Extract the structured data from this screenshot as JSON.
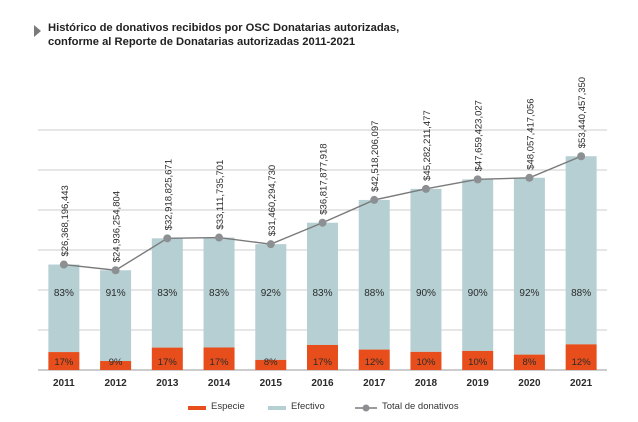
{
  "title": {
    "line1": "Histórico de donativos recibidos por OSC Donatarias autorizadas,",
    "line2": "conforme al Reporte de Donatarias autorizadas 2011-2021"
  },
  "colors": {
    "especie": "#e84e1b",
    "efectivo": "#b5cfd3",
    "total": "#7a7a7a",
    "grid": "#bdbdbd",
    "marker": "#8c9093"
  },
  "legend": {
    "especie": "Especie",
    "efectivo": "Efectivo",
    "total": "Total de donativos"
  },
  "chart_data": {
    "type": "bar",
    "stacked": true,
    "categories": [
      "2011",
      "2012",
      "2013",
      "2014",
      "2015",
      "2016",
      "2017",
      "2018",
      "2019",
      "2020",
      "2021"
    ],
    "series": [
      {
        "name": "Especie",
        "values": [
          17,
          9,
          17,
          17,
          8,
          17,
          12,
          10,
          10,
          8,
          12
        ],
        "labels": [
          "17%",
          "9%",
          "17%",
          "17%",
          "8%",
          "17%",
          "12%",
          "10%",
          "10%",
          "8%",
          "12%"
        ]
      },
      {
        "name": "Efectivo",
        "values": [
          83,
          91,
          83,
          83,
          92,
          83,
          88,
          90,
          90,
          92,
          88
        ],
        "labels": [
          "83%",
          "91%",
          "83%",
          "83%",
          "92%",
          "83%",
          "88%",
          "90%",
          "90%",
          "92%",
          "88%"
        ]
      },
      {
        "name": "Total de donativos",
        "type": "line",
        "values": [
          26368196443,
          24936254804,
          32918825671,
          33111735701,
          31460294730,
          36817877918,
          42518206097,
          45282211477,
          47659423027,
          48057417056,
          53440457350
        ],
        "labels": [
          "$26,368,196,443",
          "$24,936,254,804",
          "$32,918,825,671",
          "$33,111,735,701",
          "$31,460,294,730",
          "$36,817,877,918",
          "$42,518,206,097",
          "$45,282,211,477",
          "$47,659,423,027",
          "$48,057,417,056",
          "$53,440,457,350"
        ]
      }
    ],
    "ylim": [
      0,
      60000000000
    ],
    "grid": true,
    "legend_position": "bottom"
  }
}
